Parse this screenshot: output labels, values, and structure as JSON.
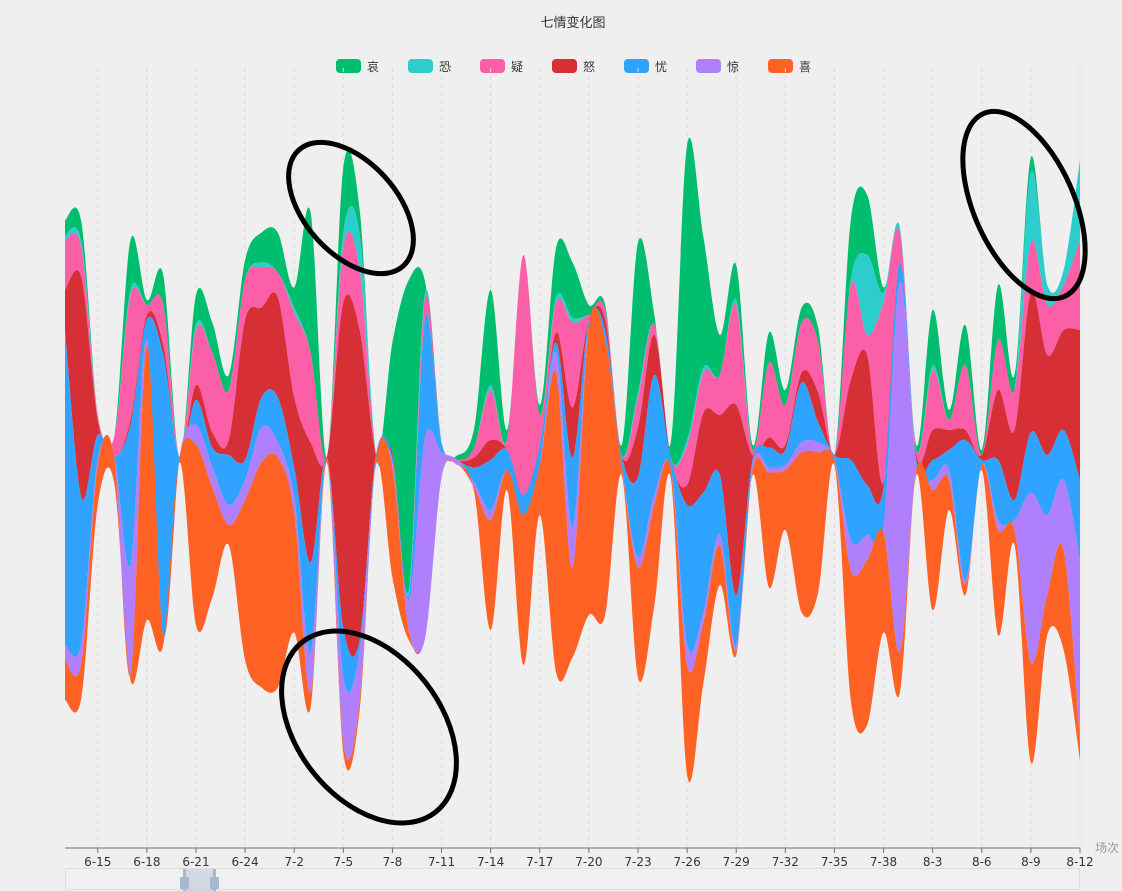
{
  "chart_data": {
    "type": "themeRiver",
    "title": "七情变化图",
    "legend": [
      "哀",
      "恐",
      "疑",
      "怒",
      "忧",
      "惊",
      "喜"
    ],
    "legend_position": "top",
    "colors": [
      "#00BE6E",
      "#2ECDCD",
      "#FB5FA8",
      "#D62F36",
      "#2FA3FF",
      "#B07FFB",
      "#FF6224"
    ],
    "xlabel": "场次",
    "x_tick_labels": [
      "6-15",
      "6-18",
      "6-21",
      "6-24",
      "7-2",
      "7-5",
      "7-8",
      "7-11",
      "7-14",
      "7-17",
      "7-20",
      "7-23",
      "7-26",
      "7-29",
      "7-32",
      "7-35",
      "7-38",
      "8-3",
      "8-6",
      "8-9",
      "8-12"
    ],
    "grid": "vertical dashed",
    "series": [
      {
        "name": "哀",
        "values": [
          3,
          4,
          0,
          0,
          10,
          1,
          6,
          0,
          6,
          6,
          3,
          4,
          6,
          8,
          4,
          28,
          0,
          13,
          5,
          0,
          22,
          62,
          2,
          0,
          1,
          4,
          19,
          2,
          0,
          2,
          10,
          11,
          2,
          1,
          2,
          30,
          2,
          3,
          59,
          26,
          8,
          7,
          1,
          6,
          3,
          3,
          3,
          0,
          12,
          12,
          1,
          0,
          1,
          11,
          2,
          8,
          1,
          11,
          3,
          3,
          0,
          0,
          0
        ]
      },
      {
        "name": "恐",
        "values": [
          1,
          1,
          0,
          0,
          1,
          0,
          0,
          0,
          1,
          0,
          0,
          0,
          1,
          0,
          1,
          0,
          0,
          3,
          7,
          0,
          0,
          1,
          1,
          0,
          0,
          0,
          1,
          0,
          0,
          0,
          1,
          1,
          0,
          0,
          0,
          1,
          0,
          0,
          1,
          1,
          0,
          1,
          0,
          0,
          0,
          0,
          0,
          0,
          1,
          16,
          2,
          1,
          0,
          1,
          0,
          0,
          0,
          0,
          0,
          14,
          4,
          3,
          16
        ]
      },
      {
        "name": "疑",
        "values": [
          10,
          6,
          1,
          4,
          25,
          2,
          8,
          0,
          11,
          16,
          10,
          8,
          8,
          5,
          17,
          18,
          0,
          11,
          12,
          0,
          0,
          0,
          4,
          0,
          0,
          2,
          10,
          2,
          48,
          6,
          6,
          17,
          1,
          2,
          0,
          6,
          2,
          0,
          8,
          8,
          8,
          20,
          1,
          15,
          8,
          10,
          10,
          0,
          19,
          4,
          36,
          6,
          1,
          12,
          2,
          13,
          0,
          10,
          8,
          10,
          10,
          9,
          18
        ]
      },
      {
        "name": "怒",
        "values": [
          8,
          44,
          3,
          0,
          1,
          1,
          2,
          0,
          3,
          3,
          3,
          28,
          18,
          20,
          14,
          24,
          0,
          65,
          62,
          0,
          1,
          0,
          0,
          0,
          0,
          2,
          4,
          0,
          0,
          0,
          2,
          10,
          0,
          2,
          0,
          10,
          8,
          0,
          4,
          16,
          12,
          38,
          1,
          2,
          1,
          2,
          6,
          0,
          16,
          26,
          1,
          0,
          1,
          6,
          4,
          2,
          1,
          14,
          14,
          28,
          20,
          20,
          30
        ]
      },
      {
        "name": "忧",
        "values": [
          63,
          29,
          5,
          0,
          28,
          4,
          56,
          0,
          5,
          4,
          10,
          4,
          6,
          9,
          6,
          18,
          0,
          10,
          2,
          1,
          1,
          1,
          24,
          2,
          0,
          3,
          10,
          4,
          4,
          4,
          2,
          14,
          1,
          2,
          2,
          16,
          24,
          2,
          28,
          24,
          12,
          10,
          1,
          4,
          3,
          12,
          4,
          1,
          16,
          10,
          8,
          4,
          1,
          4,
          4,
          28,
          1,
          12,
          4,
          12,
          12,
          10,
          16
        ]
      },
      {
        "name": "惊",
        "values": [
          3,
          4,
          1,
          0,
          22,
          1,
          0,
          0,
          4,
          4,
          4,
          4,
          7,
          3,
          3,
          8,
          0,
          13,
          10,
          0,
          1,
          6,
          40,
          5,
          1,
          1,
          2,
          0,
          0,
          0,
          4,
          8,
          0,
          0,
          0,
          2,
          2,
          0,
          4,
          2,
          2,
          1,
          1,
          1,
          1,
          2,
          2,
          0,
          6,
          5,
          1,
          74,
          1,
          2,
          2,
          1,
          0,
          2,
          2,
          34,
          16,
          14,
          36
        ]
      },
      {
        "name": "喜",
        "values": [
          8,
          7,
          8,
          5,
          1,
          55,
          2,
          1,
          36,
          22,
          4,
          32,
          45,
          46,
          24,
          3,
          1,
          2,
          2,
          1,
          22,
          2,
          0,
          0,
          0,
          1,
          22,
          4,
          30,
          10,
          60,
          18,
          58,
          55,
          2,
          22,
          20,
          2,
          22,
          12,
          8,
          1,
          1,
          23,
          12,
          32,
          28,
          1,
          26,
          33,
          20,
          8,
          1,
          24,
          6,
          2,
          1,
          21,
          3,
          20,
          8,
          20,
          4
        ]
      }
    ]
  },
  "slider": {
    "start_fraction": 0.115,
    "end_fraction": 0.148
  }
}
